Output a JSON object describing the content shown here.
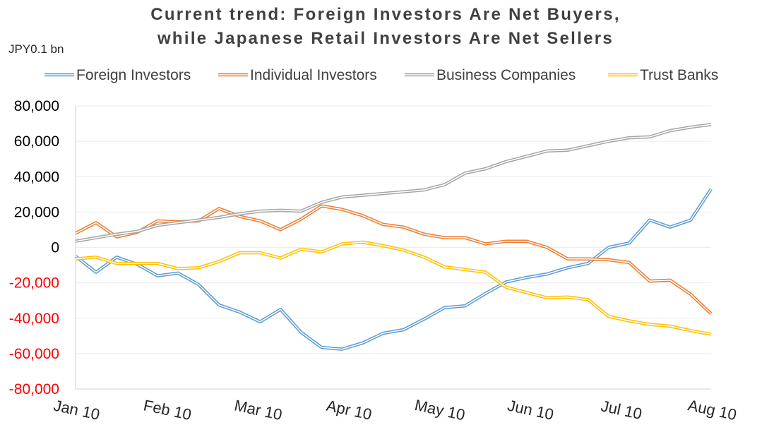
{
  "chart_data": {
    "type": "line",
    "title": [
      "Current trend: Foreign Investors Are Net Buyers,",
      "while Japanese Retail Investors Are Net Sellers"
    ],
    "unit_label": "JPY0.1 bn",
    "ylim": [
      -80000,
      80000
    ],
    "yticks": [
      "80,000",
      "60,000",
      "40,000",
      "20,000",
      "0",
      "-20,000",
      "-40,000",
      "-60,000",
      "-80,000"
    ],
    "ytick_values": [
      80000,
      60000,
      40000,
      20000,
      0,
      -20000,
      -40000,
      -60000,
      -80000
    ],
    "negative_tick_color": "#ff0000",
    "positive_tick_color": "#000000",
    "xticks": [
      "Jan 10",
      "Feb 10",
      "Mar 10",
      "Apr 10",
      "May 10",
      "Jun 10",
      "Jul 10",
      "Aug 10"
    ],
    "grid": "horizontal",
    "legend_position": "top",
    "series": [
      {
        "name": "Foreign Investors",
        "color": "#5b9bd5",
        "values": [
          -5000,
          -14000,
          -5500,
          -9500,
          -16000,
          -14500,
          -21000,
          -32500,
          -36500,
          -42000,
          -35000,
          -48000,
          -56500,
          -57500,
          -54000,
          -48500,
          -46500,
          -40500,
          -34000,
          -33000,
          -26000,
          -19500,
          -17000,
          -15000,
          -11500,
          -9000,
          0,
          2500,
          15500,
          11500,
          15500,
          33000
        ]
      },
      {
        "name": "Individual Investors",
        "color": "#ed7d31",
        "values": [
          8000,
          14000,
          6000,
          8500,
          15000,
          14500,
          15000,
          22000,
          17500,
          15000,
          10000,
          16000,
          23500,
          21500,
          18000,
          13000,
          11500,
          7500,
          5500,
          5500,
          2000,
          3500,
          3500,
          0,
          -6500,
          -6500,
          -7000,
          -8500,
          -19000,
          -18500,
          -26500,
          -37500
        ]
      },
      {
        "name": "Business Companies",
        "color": "#a5a5a5",
        "values": [
          3500,
          5500,
          7500,
          9000,
          12500,
          14000,
          15500,
          17000,
          19000,
          20500,
          21000,
          20500,
          25500,
          28500,
          29500,
          30500,
          31500,
          32500,
          35500,
          42000,
          44500,
          48500,
          51500,
          54500,
          55000,
          57500,
          60000,
          62000,
          62500,
          66000,
          68000,
          69500
        ]
      },
      {
        "name": "Trust Banks",
        "color": "#ffc000",
        "values": [
          -6500,
          -5500,
          -9000,
          -9000,
          -9000,
          -12000,
          -11500,
          -8000,
          -3000,
          -3000,
          -6000,
          -1000,
          -2500,
          2000,
          3000,
          1000,
          -1500,
          -5500,
          -11000,
          -12500,
          -14000,
          -22500,
          -25500,
          -28500,
          -28000,
          -29500,
          -39000,
          -41500,
          -43500,
          -44500,
          -47000,
          -49000
        ]
      }
    ]
  }
}
